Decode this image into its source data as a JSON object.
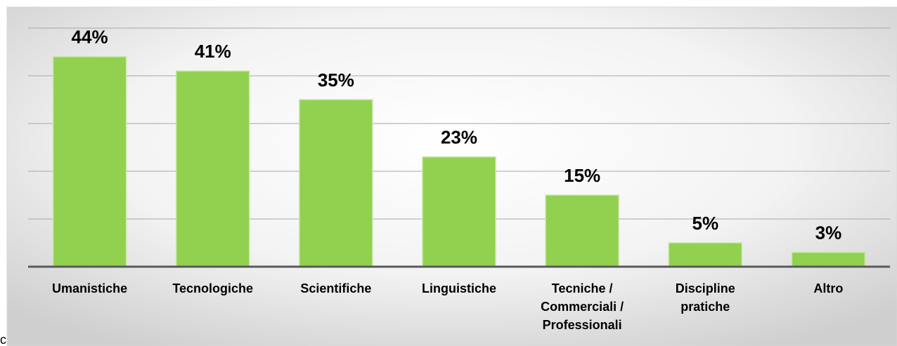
{
  "chart_data": {
    "type": "bar",
    "categories": [
      "Umanistiche",
      "Tecnologiche",
      "Scientifiche",
      "Linguistiche",
      "Tecniche / Commerciali / Professionali",
      "Discipline pratiche",
      "Altro"
    ],
    "values": [
      44,
      41,
      35,
      23,
      15,
      5,
      3
    ],
    "value_labels": [
      "44%",
      "41%",
      "35%",
      "23%",
      "15%",
      "5%",
      "3%"
    ],
    "color": "#92d050",
    "ylim": [
      0,
      50
    ],
    "yticks": [
      0,
      10,
      20,
      30,
      40,
      50
    ],
    "grid": true,
    "note": "c"
  }
}
